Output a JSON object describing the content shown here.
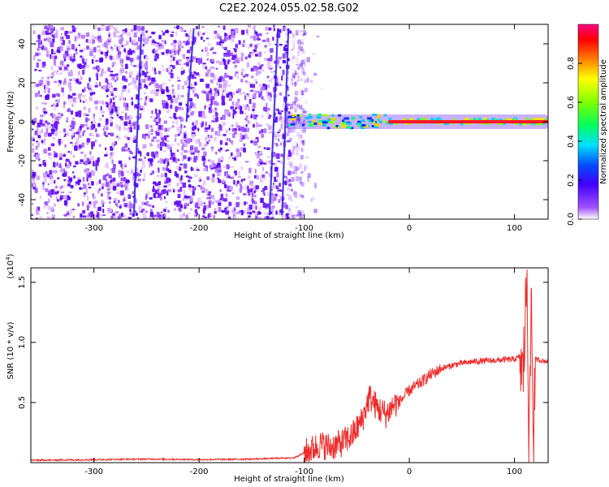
{
  "figure": {
    "title": "C2E2.2024.055.02.58.G02"
  },
  "chart_data": [
    {
      "type": "heatmap",
      "xlabel": "Height of straight line (km)",
      "ylabel": "Frequency (Hz)",
      "xlim": [
        -360,
        132
      ],
      "ylim": [
        -50,
        50
      ],
      "x_ticks": [
        "-300",
        "-200",
        "-100",
        "0",
        "100"
      ],
      "x_tick_values": [
        -300,
        -200,
        -100,
        0,
        100
      ],
      "y_ticks": [
        "-40",
        "-20",
        "0",
        "20",
        "40"
      ],
      "y_tick_values": [
        -40,
        -20,
        0,
        20,
        40
      ],
      "noise_region_end_km": -100,
      "signal_start_km": -118,
      "signal_frequency_hz": 0,
      "colorbar": {
        "label": "Normalized spectral amplitude",
        "ticks": [
          "0.0",
          "0.2",
          "0.4",
          "0.6",
          "0.8"
        ],
        "tick_values": [
          0.0,
          0.2,
          0.4,
          0.6,
          0.8
        ],
        "range": [
          0,
          1
        ]
      }
    },
    {
      "type": "line",
      "xlabel": "Height of straight line (km)",
      "ylabel": "SNR (10 * v/v)",
      "multiplier": "(x10",
      "multiplier_exp": "4",
      "multiplier_close": ")",
      "xlim": [
        -360,
        132
      ],
      "ylim": [
        0,
        1.62
      ],
      "x_ticks": [
        "-300",
        "-200",
        "-100",
        "0",
        "100"
      ],
      "x_tick_values": [
        -300,
        -200,
        -100,
        0,
        100
      ],
      "y_ticks": [
        "0.5",
        "1.0",
        "1.5"
      ],
      "y_tick_values": [
        0.5,
        1.0,
        1.5
      ],
      "color": "#ee2c2c",
      "x": [
        -360,
        -300,
        -250,
        -200,
        -150,
        -110,
        -95,
        -85,
        -75,
        -65,
        -55,
        -45,
        -38,
        -30,
        -22,
        -15,
        -8,
        0,
        10,
        20,
        30,
        45,
        60,
        80,
        100,
        105,
        108,
        110,
        112,
        114,
        116,
        118,
        120,
        125,
        132
      ],
      "values": [
        0.02,
        0.025,
        0.03,
        0.025,
        0.03,
        0.04,
        0.1,
        0.15,
        0.13,
        0.16,
        0.22,
        0.35,
        0.55,
        0.45,
        0.4,
        0.48,
        0.52,
        0.6,
        0.66,
        0.73,
        0.78,
        0.82,
        0.84,
        0.85,
        0.86,
        0.88,
        0.7,
        1.1,
        1.62,
        0.05,
        1.45,
        0.2,
        0.86,
        0.85,
        0.84
      ]
    }
  ]
}
